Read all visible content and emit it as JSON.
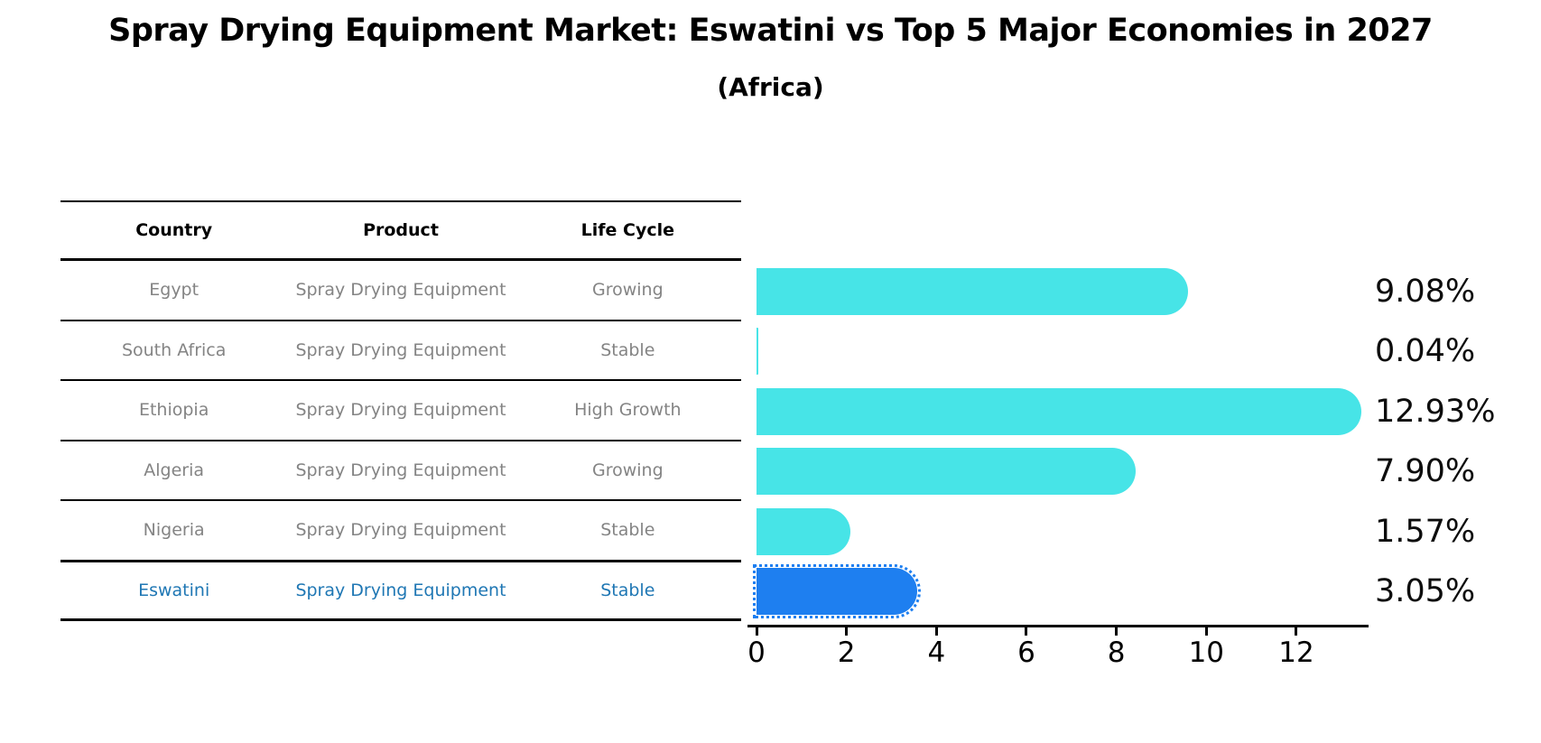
{
  "title": "Spray Drying Equipment Market: Eswatini vs Top 5 Major Economies in 2027",
  "subtitle": "(Africa)",
  "table": {
    "headers": [
      "Country",
      "Product",
      "Life Cycle"
    ]
  },
  "chart_data": {
    "type": "bar",
    "orientation": "horizontal",
    "title": "Spray Drying Equipment Market: Eswatini vs Top 5 Major Economies in 2027",
    "subtitle": "(Africa)",
    "xlabel": "",
    "ylabel": "",
    "xlim": [
      0,
      13.6
    ],
    "x_ticks": [
      0,
      2,
      4,
      6,
      8,
      10,
      12
    ],
    "grid": false,
    "legend": "none",
    "categories": [
      "Egypt",
      "South Africa",
      "Ethiopia",
      "Algeria",
      "Nigeria",
      "Eswatini"
    ],
    "values": [
      9.08,
      0.04,
      12.93,
      7.9,
      1.57,
      3.05
    ],
    "value_labels": [
      "9.08%",
      "0.04%",
      "12.93%",
      "7.90%",
      "1.57%",
      "3.05%"
    ],
    "colors": {
      "bar_default": "#47e4e7",
      "bar_highlight": "#1e7ff0",
      "highlight_text": "#1f77b4",
      "row_text": "#848484"
    },
    "rows": [
      {
        "country": "Egypt",
        "product": "Spray Drying Equipment",
        "life_cycle": "Growing",
        "value": 9.08,
        "value_label": "9.08%",
        "highlight": false
      },
      {
        "country": "South Africa",
        "product": "Spray Drying Equipment",
        "life_cycle": "Stable",
        "value": 0.04,
        "value_label": "0.04%",
        "highlight": false
      },
      {
        "country": "Ethiopia",
        "product": "Spray Drying Equipment",
        "life_cycle": "High Growth",
        "value": 12.93,
        "value_label": "12.93%",
        "highlight": false
      },
      {
        "country": "Algeria",
        "product": "Spray Drying Equipment",
        "life_cycle": "Growing",
        "value": 7.9,
        "value_label": "7.90%",
        "highlight": false
      },
      {
        "country": "Nigeria",
        "product": "Spray Drying Equipment",
        "life_cycle": "Stable",
        "value": 1.57,
        "value_label": "1.57%",
        "highlight": false
      },
      {
        "country": "Eswatini",
        "product": "Spray Drying Equipment",
        "life_cycle": "Stable",
        "value": 3.05,
        "value_label": "3.05%",
        "highlight": true
      }
    ]
  }
}
